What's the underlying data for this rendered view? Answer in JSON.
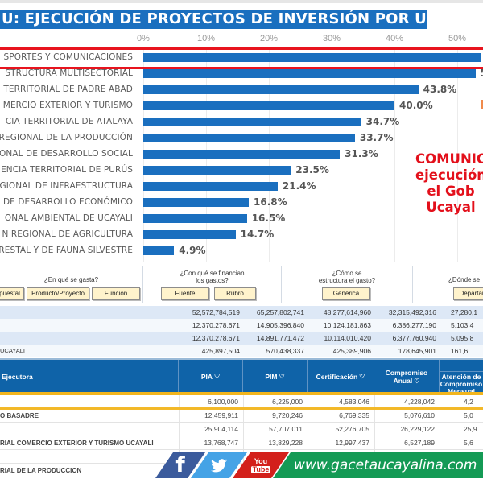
{
  "chart_data": {
    "type": "bar",
    "orientation": "horizontal",
    "title": "U: EJECUCIÓN DE PROYECTOS DE INVERSIÓN POR UEI",
    "xlabel": "",
    "ylabel": "",
    "xlim": [
      0,
      55
    ],
    "grid": true,
    "tick_labels": [
      "0%",
      "10%",
      "20%",
      "30%",
      "40%",
      "50%"
    ],
    "categories": [
      "SPORTES Y COMUNICACIONES",
      "STRUCTURA MULTISECTORIAL",
      "TERRITORIAL DE PADRE ABAD",
      "MERCIO EXTERIOR Y TURISMO",
      "CIA TERRITORIAL DE ATALAYA",
      "REGIONAL DE LA PRODUCCIÓN",
      "ONAL DE DESARROLLO SOCIAL",
      "ENCIA TERRITORIAL DE PURÚS",
      "GIONAL DE INFRAESTRUCTURA",
      "DE DESARROLLO ECONÓMICO",
      "ONAL AMBIENTAL DE UCAYALI",
      "N REGIONAL DE AGRICULTURA",
      "RESTAL Y DE FAUNA SILVESTRE"
    ],
    "values": [
      54.0,
      52.9,
      43.8,
      40.0,
      34.7,
      33.7,
      31.3,
      23.5,
      21.4,
      16.8,
      16.5,
      14.7,
      4.9
    ],
    "value_labels": [
      "",
      "5",
      "43.8%",
      "40.0%",
      "34.7%",
      "33.7%",
      "31.3%",
      "23.5%",
      "21.4%",
      "16.8%",
      "16.5%",
      "14.7%",
      "4.9%"
    ],
    "highlighted_category": "SPORTES Y COMUNICACIONES",
    "annotation": [
      "COMUNIC",
      "ejecución",
      "el Gob",
      "Ucayal"
    ],
    "colors": {
      "bar": "#1a6fbf",
      "highlight": "#e8141e",
      "annotation": "#e3101b"
    }
  },
  "header": {
    "title": "U: EJECUCIÓN DE PROYECTOS DE INVERSIÓN POR UEI"
  },
  "questions": [
    {
      "text": "¿En qué se gasta?",
      "buttons": [
        "puestal",
        "Producto/Proyecto",
        "Función"
      ]
    },
    {
      "text": "¿Con qué se financian los gastos?",
      "buttons": [
        "Fuente",
        "Rubro"
      ]
    },
    {
      "text": "¿Cómo se estructura el gasto?",
      "buttons": [
        "Genérica"
      ]
    },
    {
      "text": "¿Dónde se",
      "buttons": [
        "Departam"
      ]
    }
  ],
  "summary_rows": [
    {
      "label": "",
      "values": [
        "52,572,784,519",
        "65,257,802,741",
        "48,277,614,960",
        "32,315,492,316",
        "27,280,1"
      ]
    },
    {
      "label": "",
      "values": [
        "12,370,278,671",
        "14,905,396,840",
        "10,124,181,863",
        "6,386,277,190",
        "5,103,4"
      ]
    },
    {
      "label": "",
      "values": [
        "12,370,278,671",
        "14,891,771,472",
        "10,114,010,420",
        "6,377,760,940",
        "5,095,8"
      ]
    },
    {
      "label": "UCAYALI",
      "values": [
        "425,897,504",
        "570,438,337",
        "425,389,906",
        "178,645,901",
        "161,6"
      ]
    }
  ],
  "table": {
    "columns": [
      "Ejecutora",
      "PIA",
      "PIM",
      "Certificación",
      "Compromiso Anual",
      "Atención de Compromiso Mensual"
    ],
    "pin_icon": "location-pin-icon",
    "rows": [
      {
        "name": "",
        "values": [
          "6,100,000",
          "6,225,000",
          "4,583,046",
          "4,228,042",
          "4,2"
        ]
      },
      {
        "name": "O BASADRE",
        "values": [
          "12,459,911",
          "9,720,246",
          "6,769,335",
          "5,076,610",
          "5,0"
        ]
      },
      {
        "name": "",
        "values": [
          "25,904,114",
          "57,707,011",
          "52,276,705",
          "26,229,122",
          "25,9"
        ]
      },
      {
        "name": "RIAL COMERCIO EXTERIOR Y TURISMO UCAYALI",
        "values": [
          "13,768,747",
          "13,829,228",
          "12,997,437",
          "6,527,189",
          "5,6"
        ]
      },
      {
        "name": "",
        "values": [
          "",
          "",
          "",
          "",
          ""
        ]
      },
      {
        "name": "RIAL DE LA PRODUCCION",
        "values": [
          "",
          "",
          "",
          "",
          ""
        ]
      }
    ]
  },
  "footer": {
    "facebook_icon": "f",
    "twitter_icon": "🐦",
    "youtube_top": "You",
    "youtube_bottom": "Tube",
    "website": "www.gacetaucayalina.com"
  }
}
